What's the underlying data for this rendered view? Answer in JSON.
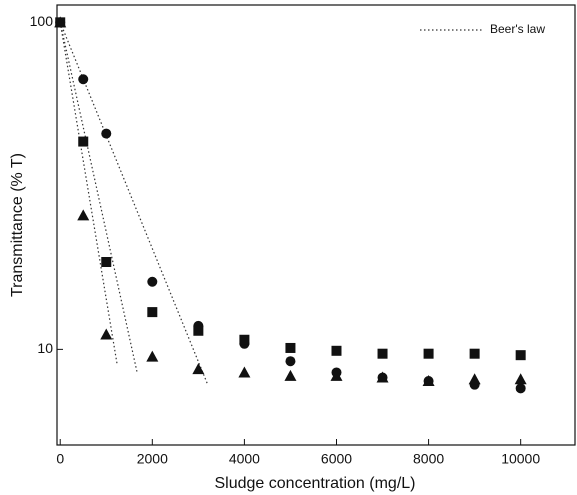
{
  "chart_data": {
    "type": "scatter",
    "xlabel": "Sludge concentration (mg/L)",
    "ylabel": "Transmittance (% T)",
    "log_y": true,
    "xlim": [
      -70,
      11180
    ],
    "ylim": [
      5.1,
      113
    ],
    "xticks": [
      0,
      2000,
      4000,
      6000,
      8000,
      10000
    ],
    "yticks": [
      10,
      100
    ],
    "legend": "upper right",
    "series": [
      {
        "marker": "circle",
        "color": "#111111",
        "x": [
          0,
          500,
          1000,
          2000,
          3000,
          4000,
          5000,
          6000,
          7000,
          8000,
          9000,
          10000
        ],
        "values": [
          100,
          67,
          45.7,
          16.1,
          11.8,
          10.4,
          9.2,
          8.5,
          8.2,
          8.0,
          7.8,
          7.6
        ]
      },
      {
        "marker": "square",
        "color": "#111111",
        "x": [
          0,
          500,
          1000,
          2000,
          3000,
          4000,
          5000,
          6000,
          7000,
          8000,
          9000,
          10000
        ],
        "values": [
          100,
          43.2,
          18.5,
          13.0,
          11.4,
          10.7,
          10.1,
          9.9,
          9.7,
          9.7,
          9.7,
          9.6
        ]
      },
      {
        "marker": "triangle",
        "color": "#111111",
        "x": [
          0,
          500,
          1000,
          2000,
          3000,
          4000,
          5000,
          6000,
          7000,
          8000,
          9000,
          10000
        ],
        "values": [
          100,
          25.7,
          11.1,
          9.5,
          8.7,
          8.5,
          8.3,
          8.3,
          8.2,
          8.0,
          8.1,
          8.1
        ]
      }
    ],
    "beers_law": {
      "name": "Beer's law",
      "color": "#333333",
      "lines": [
        {
          "x": [
            0,
            3210
          ],
          "values": [
            100,
            7.76
          ]
        },
        {
          "x": [
            0,
            1670
          ],
          "values": [
            100,
            8.5
          ]
        },
        {
          "x": [
            0,
            1236
          ],
          "values": [
            100,
            9.0
          ]
        }
      ]
    }
  }
}
